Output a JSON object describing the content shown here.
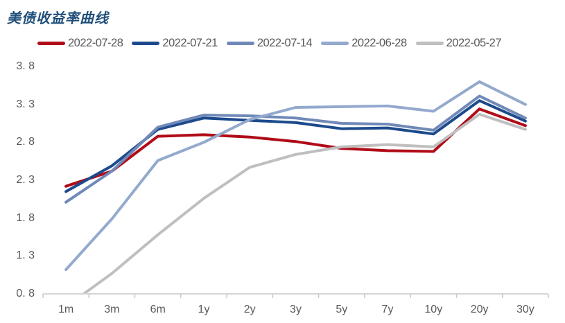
{
  "title": "美债收益率曲线",
  "colors": {
    "title": "#1f4e79",
    "legend_text": "#595959",
    "axis_text": "#595959",
    "axis_line": "#c9c9c9"
  },
  "chart_data": {
    "type": "line",
    "title": "美债收益率曲线",
    "categories": [
      "1m",
      "3m",
      "6m",
      "1y",
      "2y",
      "3y",
      "5y",
      "7y",
      "10y",
      "20y",
      "30y"
    ],
    "series": [
      {
        "name": "2022-07-28",
        "color": "#b00c18",
        "values": [
          2.22,
          2.42,
          2.88,
          2.9,
          2.87,
          2.81,
          2.72,
          2.69,
          2.68,
          3.24,
          3.02
        ]
      },
      {
        "name": "2022-07-21",
        "color": "#1c4a8c",
        "values": [
          2.15,
          2.49,
          2.97,
          3.12,
          3.09,
          3.06,
          2.98,
          2.99,
          2.91,
          3.35,
          3.08
        ]
      },
      {
        "name": "2022-07-14",
        "color": "#7089b8",
        "values": [
          2.01,
          2.42,
          3.0,
          3.16,
          3.15,
          3.12,
          3.05,
          3.04,
          2.96,
          3.41,
          3.12
        ]
      },
      {
        "name": "2022-06-28",
        "color": "#93a9ce",
        "values": [
          1.12,
          1.79,
          2.56,
          2.8,
          3.1,
          3.26,
          3.27,
          3.28,
          3.21,
          3.6,
          3.3
        ]
      },
      {
        "name": "2022-05-27",
        "color": "#bfbfbf",
        "values": [
          0.63,
          1.07,
          1.58,
          2.06,
          2.47,
          2.64,
          2.74,
          2.77,
          2.74,
          3.17,
          2.97
        ]
      }
    ],
    "xlabel": "",
    "ylabel": "",
    "ylim": [
      0.8,
      3.8
    ],
    "y_ticks": [
      3.8,
      3.3,
      2.8,
      2.3,
      1.8,
      1.3,
      0.8
    ],
    "y_tick_labels": [
      "3. 8",
      "3. 3",
      "2. 8",
      "2. 3",
      "1. 8",
      "1. 3",
      "0. 8"
    ],
    "grid": false,
    "legend_position": "top"
  }
}
